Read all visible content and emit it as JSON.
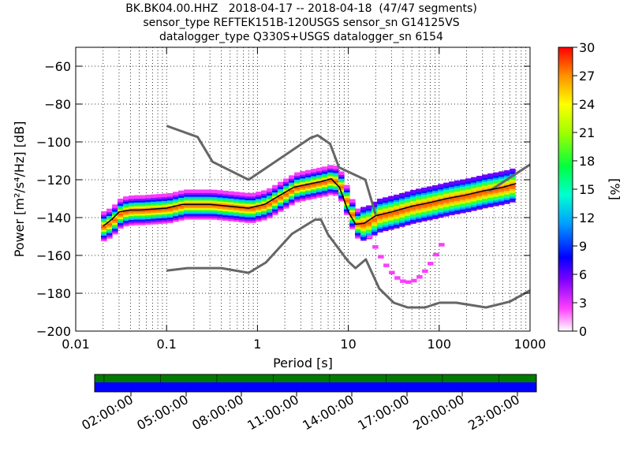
{
  "header": {
    "title_lines": [
      "BK.BK04.00.HHZ   2018-04-17 -- 2018-04-18  (47/47 segments)",
      "sensor_type REFTEK151B-120USGS sensor_sn G14125VS",
      "datalogger_type Q330S+USGS datalogger_sn 6154"
    ]
  },
  "chart_data": {
    "type": "heatmap",
    "xlabel": "Period [s]",
    "ylabel": "Power [m²/s⁴/Hz] [dB]",
    "xscale": "log",
    "xlim": [
      0.01,
      1000
    ],
    "ylim": [
      -200,
      -50
    ],
    "x_tick_labels": [
      "0.01",
      "0.1",
      "1",
      "10",
      "100",
      "1000"
    ],
    "x_ticks": [
      0.01,
      0.1,
      1,
      10,
      100,
      1000
    ],
    "y_ticks": [
      -200,
      -180,
      -160,
      -140,
      -120,
      -100,
      -80,
      -60
    ],
    "y_tick_labels": [
      "−200",
      "−180",
      "−160",
      "−140",
      "−120",
      "−100",
      "−80",
      "−60"
    ],
    "colorbar": {
      "label": "[%]",
      "range": [
        0,
        30
      ],
      "ticks": [
        0,
        3,
        6,
        9,
        12,
        15,
        18,
        21,
        24,
        27,
        30
      ]
    },
    "noise_model_high": {
      "periods": [
        0.1,
        0.22,
        0.32,
        0.8,
        3.8,
        4.6,
        6.3,
        7.9,
        15.4,
        20
      ],
      "power": [
        -91.5,
        -97.4,
        -110.5,
        -120,
        -98,
        -96.5,
        -101,
        -113.5,
        -120,
        -138.5
      ]
    },
    "noise_model_high_2": {
      "periods": [
        354.8,
        1000
      ],
      "power": [
        -126,
        -112
      ]
    },
    "noise_model_low": {
      "periods": [
        0.1,
        0.17,
        0.4,
        0.8,
        1.24,
        2.4,
        4.3,
        5,
        6,
        10,
        12,
        15.6,
        21.9,
        31.6,
        45,
        70,
        101,
        154,
        328,
        600,
        1000
      ],
      "power": [
        -168,
        -166.7,
        -166.7,
        -169.2,
        -163.7,
        -148.6,
        -141.1,
        -141.1,
        -149,
        -163.2,
        -166.7,
        -162.1,
        -177.5,
        -185,
        -187.5,
        -187.5,
        -185,
        -185,
        -187.5,
        -184.4,
        -178.5
      ]
    },
    "mode_line": {
      "periods": [
        0.02,
        0.025,
        0.03,
        0.04,
        0.05,
        0.07,
        0.1,
        0.15,
        0.2,
        0.3,
        0.5,
        0.8,
        1.2,
        1.8,
        2.5,
        3.5,
        5,
        6.5,
        8,
        10,
        12,
        15,
        20,
        30,
        50,
        80,
        120,
        200,
        300,
        500,
        700
      ],
      "power": [
        -144.5,
        -141,
        -137,
        -136,
        -136,
        -135.5,
        -135,
        -133,
        -133,
        -133,
        -134,
        -135,
        -133,
        -128,
        -124,
        -122.5,
        -121,
        -119.5,
        -124,
        -137,
        -143.5,
        -143,
        -139,
        -137,
        -134,
        -132,
        -130,
        -128,
        -126,
        -124,
        -122
      ]
    },
    "time_axis": {
      "tick_labels": [
        "02:00:00",
        "05:00:00",
        "08:00:00",
        "11:00:00",
        "14:00:00",
        "17:00:00",
        "20:00:00",
        "23:00:00"
      ],
      "segments": 47,
      "bar_colors": [
        "#007b00",
        "#0000ff"
      ]
    }
  }
}
